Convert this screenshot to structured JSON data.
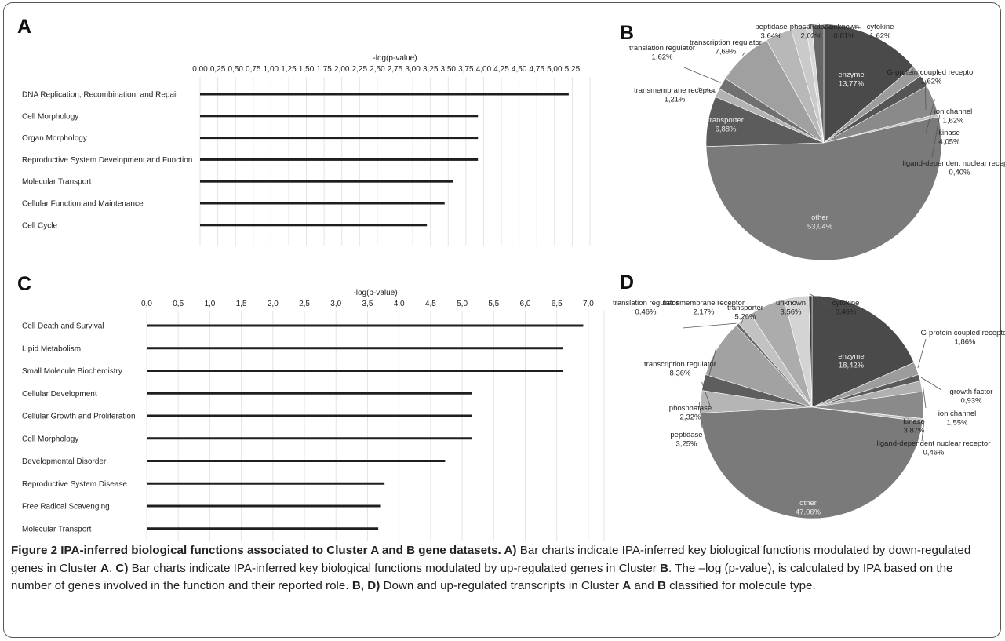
{
  "panels": [
    {
      "letter": "A",
      "chart_index": 0
    },
    {
      "letter": "B",
      "chart_index": 1
    },
    {
      "letter": "C",
      "chart_index": 2
    },
    {
      "letter": "D",
      "chart_index": 3
    }
  ],
  "chart_data": [
    {
      "type": "bar",
      "panel": "A",
      "orientation": "horizontal",
      "xlabel": "-log(p-value)",
      "xlim": [
        0,
        5.5
      ],
      "ticks": [
        "0,00",
        "0,25",
        "0,50",
        "0,75",
        "1,00",
        "1,25",
        "1,50",
        "1,75",
        "2,00",
        "2,25",
        "2,50",
        "2,75",
        "3,00",
        "3,25",
        "3,50",
        "3,75",
        "4,00",
        "4,25",
        "4,50",
        "4,75",
        "5,00",
        "5,25"
      ],
      "tick_values": [
        0,
        0.25,
        0.5,
        0.75,
        1,
        1.25,
        1.5,
        1.75,
        2,
        2.25,
        2.5,
        2.75,
        3,
        3.25,
        3.5,
        3.75,
        4,
        4.25,
        4.5,
        4.75,
        5,
        5.25
      ],
      "grid": true,
      "categories": [
        "DNA Replication, Recombination, and Repair",
        "Cell Morphology",
        "Organ Morphology",
        "Reproductive System Development and Function",
        "Molecular Transport",
        "Cellular Function and Maintenance",
        "Cell Cycle"
      ],
      "values": [
        5.2,
        3.92,
        3.92,
        3.92,
        3.57,
        3.45,
        3.2
      ]
    },
    {
      "type": "pie",
      "panel": "B",
      "slices": [
        {
          "label": "enzyme",
          "value_text": "13,77%",
          "value": 13.77,
          "color": "#4a4a4a",
          "inside": true
        },
        {
          "label": "G-protein coupled receptor",
          "value_text": "1,62%",
          "value": 1.62,
          "color": "#9c9c9c"
        },
        {
          "label": "ion channel",
          "value_text": "1,62%",
          "value": 1.62,
          "color": "#555555"
        },
        {
          "label": "kinase",
          "value_text": "4,05%",
          "value": 4.05,
          "color": "#8a8a8a"
        },
        {
          "label": "ligand-dependent nuclear receptor",
          "value_text": "0,40%",
          "value": 0.4,
          "color": "#c0c0c0"
        },
        {
          "label": "other",
          "value_text": "53,04%",
          "value": 53.04,
          "color": "#7a7a7a",
          "inside": true
        },
        {
          "label": "transporter",
          "value_text": "6,88%",
          "value": 6.88,
          "color": "#5c5c5c",
          "inside": true
        },
        {
          "label": "transmembrane receptor",
          "value_text": "1,21%",
          "value": 1.21,
          "color": "#b3b3b3"
        },
        {
          "label": "translation regulator",
          "value_text": "1,62%",
          "value": 1.62,
          "color": "#707070"
        },
        {
          "label": "transcription regulator",
          "value_text": "7,69%",
          "value": 7.69,
          "color": "#a0a0a0"
        },
        {
          "label": "peptidase",
          "value_text": "3,64%",
          "value": 3.64,
          "color": "#b8b8b8"
        },
        {
          "label": "phosphatase",
          "value_text": "2,02%",
          "value": 2.02,
          "color": "#cacaca"
        },
        {
          "label": "unknown",
          "value_text": "0,81%",
          "value": 0.81,
          "color": "#d8d8d8"
        },
        {
          "label": "cytokine",
          "value_text": "1,62%",
          "value": 1.62,
          "color": "#666666"
        }
      ]
    },
    {
      "type": "bar",
      "panel": "C",
      "orientation": "horizontal",
      "xlabel": "-log(p-value)",
      "xlim": [
        0,
        7.25
      ],
      "ticks": [
        "0,0",
        "0,5",
        "1,0",
        "1,5",
        "2,0",
        "2,5",
        "3,0",
        "3,5",
        "4,0",
        "4,5",
        "5,0",
        "5,5",
        "6,0",
        "6,5",
        "7,0"
      ],
      "tick_values": [
        0,
        0.5,
        1,
        1.5,
        2,
        2.5,
        3,
        3.5,
        4,
        4.5,
        5,
        5.5,
        6,
        6.5,
        7
      ],
      "grid": true,
      "categories": [
        "Cell Death and Survival",
        "Lipid Metabolism",
        "Small Molecule Biochemistry",
        "Cellular Development",
        "Cellular Growth and Proliferation",
        "Cell Morphology",
        "Developmental Disorder",
        "Reproductive System Disease",
        "Free Radical Scavenging",
        "Molecular Transport"
      ],
      "values": [
        6.92,
        6.6,
        6.6,
        5.15,
        5.15,
        5.15,
        4.73,
        3.77,
        3.7,
        3.67
      ]
    },
    {
      "type": "pie",
      "panel": "D",
      "slices": [
        {
          "label": "enzyme",
          "value_text": "18,42%",
          "value": 18.42,
          "color": "#4a4a4a",
          "inside": true
        },
        {
          "label": "G-protein coupled receptor",
          "value_text": "1,86%",
          "value": 1.86,
          "color": "#9c9c9c"
        },
        {
          "label": "growth factor",
          "value_text": "0,93%",
          "value": 0.93,
          "color": "#5a5a5a"
        },
        {
          "label": "ion channel",
          "value_text": "1,55%",
          "value": 1.55,
          "color": "#b0b0b0"
        },
        {
          "label": "kinase",
          "value_text": "3,87%",
          "value": 3.87,
          "color": "#8a8a8a"
        },
        {
          "label": "ligand-dependent nuclear receptor",
          "value_text": "0,46%",
          "value": 0.46,
          "color": "#c4c4c4"
        },
        {
          "label": "other",
          "value_text": "47,06%",
          "value": 47.06,
          "color": "#7a7a7a",
          "inside": true
        },
        {
          "label": "peptidase",
          "value_text": "3,25%",
          "value": 3.25,
          "color": "#b5b5b5"
        },
        {
          "label": "phosphatase",
          "value_text": "2,32%",
          "value": 2.32,
          "color": "#5e5e5e"
        },
        {
          "label": "transcription regulator",
          "value_text": "8,36%",
          "value": 8.36,
          "color": "#a2a2a2"
        },
        {
          "label": "translation regulator",
          "value_text": "0,46%",
          "value": 0.46,
          "color": "#6a6a6a"
        },
        {
          "label": "transmembrane receptor",
          "value_text": "2,17%",
          "value": 2.17,
          "color": "#c2c2c2"
        },
        {
          "label": "transporter",
          "value_text": "5,26%",
          "value": 5.26,
          "color": "#acacac"
        },
        {
          "label": "unknown",
          "value_text": "3,56%",
          "value": 3.56,
          "color": "#d4d4d4"
        },
        {
          "label": "cytokine",
          "value_text": "0,46%",
          "value": 0.46,
          "color": "#3c3c3c"
        }
      ]
    }
  ],
  "caption": {
    "segments": [
      {
        "t": "Figure 2 IPA-inferred biological functions associated to Cluster A and B gene datasets. ",
        "b": true
      },
      {
        "t": "A)",
        "b": true
      },
      {
        "t": " Bar charts indicate IPA-inferred key biological functions modulated by down-regulated genes in Cluster ",
        "b": false
      },
      {
        "t": "A",
        "b": true
      },
      {
        "t": ". ",
        "b": false
      },
      {
        "t": "C)",
        "b": true
      },
      {
        "t": " Bar charts indicate IPA-inferred key biological functions modulated by up-regulated genes in Cluster ",
        "b": false
      },
      {
        "t": "B",
        "b": true
      },
      {
        "t": ". The –log (p-value), is calculated by IPA based on the number of genes involved in the function and their reported role. ",
        "b": false
      },
      {
        "t": "B, D)",
        "b": true
      },
      {
        "t": " Down and up-regulated transcripts in Cluster ",
        "b": false
      },
      {
        "t": "A",
        "b": true
      },
      {
        "t": " and ",
        "b": false
      },
      {
        "t": "B",
        "b": true
      },
      {
        "t": " classified for molecule type.",
        "b": false
      }
    ]
  }
}
